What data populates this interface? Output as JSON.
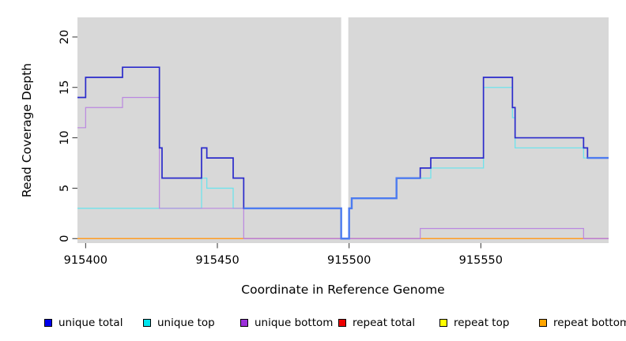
{
  "chart_data": {
    "type": "step-line",
    "title": "",
    "xlabel": "Coordinate in Reference Genome",
    "ylabel": "Read Coverage Depth",
    "xlim": [
      915396.9,
      915598.5
    ],
    "ylim": [
      -0.45,
      21.95
    ],
    "x_ticks": [
      915400,
      915450,
      915500,
      915550
    ],
    "x_tick_labels": [
      "915400",
      "915450",
      "915500",
      "915550"
    ],
    "y_ticks": [
      0,
      5,
      10,
      15,
      20
    ],
    "y_tick_labels": [
      "0",
      "5",
      "10",
      "15",
      "20"
    ],
    "grid": false,
    "legend_position": "bottom",
    "plot_bg": "#D8D8D8",
    "gap_region": [
      915497,
      915499.7
    ],
    "blend_overlay_color": "#4C7BF0",
    "series": [
      {
        "name": "unique total",
        "legend_color": "#0000EE",
        "line_color": "#2B2BCB",
        "steps": [
          [
            915396.9,
            14
          ],
          [
            915400,
            16
          ],
          [
            915414,
            17
          ],
          [
            915428,
            9
          ],
          [
            915429,
            6
          ],
          [
            915444,
            9
          ],
          [
            915446,
            8
          ],
          [
            915456,
            6
          ],
          [
            915460,
            3
          ],
          [
            915497,
            0
          ],
          [
            915500,
            3
          ],
          [
            915501,
            4
          ],
          [
            915518,
            6
          ],
          [
            915527,
            7
          ],
          [
            915531,
            8
          ],
          [
            915551,
            16
          ],
          [
            915562,
            13
          ],
          [
            915563,
            10
          ],
          [
            915589,
            9
          ],
          [
            915590.5,
            8
          ]
        ]
      },
      {
        "name": "unique top",
        "legend_color": "#00E5EE",
        "line_color": "#6FE3EC",
        "steps": [
          [
            915396.9,
            3
          ],
          [
            915444,
            6
          ],
          [
            915446,
            5
          ],
          [
            915456,
            3
          ],
          [
            915497,
            0
          ],
          [
            915500,
            3
          ],
          [
            915501,
            4
          ],
          [
            915518,
            6
          ],
          [
            915531,
            7
          ],
          [
            915551,
            15
          ],
          [
            915562,
            12
          ],
          [
            915563,
            9
          ],
          [
            915589,
            8
          ]
        ]
      },
      {
        "name": "unique bottom",
        "legend_color": "#9B30D9",
        "line_color": "#BA87E0",
        "steps": [
          [
            915396.9,
            11
          ],
          [
            915400,
            13
          ],
          [
            915414,
            14
          ],
          [
            915428,
            3
          ],
          [
            915460,
            0
          ],
          [
            915527,
            1
          ],
          [
            915589,
            0
          ]
        ]
      },
      {
        "name": "repeat total",
        "legend_color": "#EE0000",
        "line_color": "#D23B64",
        "steps": [
          [
            915396.9,
            0
          ]
        ]
      },
      {
        "name": "repeat top",
        "legend_color": "#FFFF00",
        "line_color": "#FFFF00",
        "steps": [
          [
            915396.9,
            0
          ]
        ]
      },
      {
        "name": "repeat bottom",
        "legend_color": "#FFA500",
        "line_color": "#FF9D23",
        "steps": [
          [
            915396.9,
            0
          ]
        ]
      }
    ]
  }
}
